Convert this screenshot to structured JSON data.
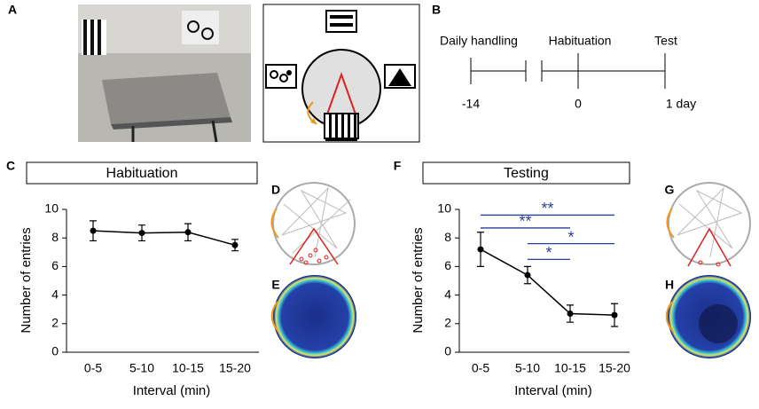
{
  "panels": {
    "labels": [
      "A",
      "B",
      "C",
      "D",
      "E",
      "F",
      "G",
      "H"
    ]
  },
  "timeline": {
    "events": [
      {
        "label": "Daily handling",
        "time": "-14"
      },
      {
        "label": "Habituation",
        "time": "0"
      },
      {
        "label": "Test",
        "time": "1 day"
      }
    ]
  },
  "chart_data": [
    {
      "type": "line",
      "title": "Habituation",
      "xlabel": "Interval (min)",
      "ylabel": "Number of entries",
      "categories": [
        "0-5",
        "5-10",
        "10-15",
        "15-20"
      ],
      "series": [
        {
          "name": "Habituation",
          "color": "#000000",
          "values": [
            8.5,
            8.35,
            8.4,
            7.5
          ],
          "errors": [
            0.7,
            0.55,
            0.6,
            0.4
          ]
        }
      ],
      "ylim": [
        0,
        10
      ],
      "yticks": [
        0,
        2,
        4,
        6,
        8,
        10
      ],
      "grid": false
    },
    {
      "type": "line",
      "title": "Testing",
      "xlabel": "Interval (min)",
      "ylabel": "Number of entries",
      "categories": [
        "0-5",
        "5-10",
        "10-15",
        "15-20"
      ],
      "series": [
        {
          "name": "Testing",
          "color": "#000000",
          "values": [
            7.2,
            5.4,
            2.7,
            2.6
          ],
          "errors": [
            1.2,
            0.6,
            0.6,
            0.8
          ]
        }
      ],
      "ylim": [
        0,
        10
      ],
      "yticks": [
        0,
        2,
        4,
        6,
        8,
        10
      ],
      "grid": false,
      "annotations": [
        {
          "text": "**",
          "from": "0-5",
          "to": "15-20",
          "y": 9.6,
          "color": "#2b3f96"
        },
        {
          "text": "**",
          "from": "0-5",
          "to": "10-15",
          "y": 8.7,
          "color": "#2b3f96"
        },
        {
          "text": "*",
          "from": "5-10",
          "to": "15-20",
          "y": 7.6,
          "color": "#2b3f96"
        },
        {
          "text": "*",
          "from": "5-10",
          "to": "10-15",
          "y": 6.5,
          "color": "#2b3f96"
        }
      ]
    }
  ]
}
